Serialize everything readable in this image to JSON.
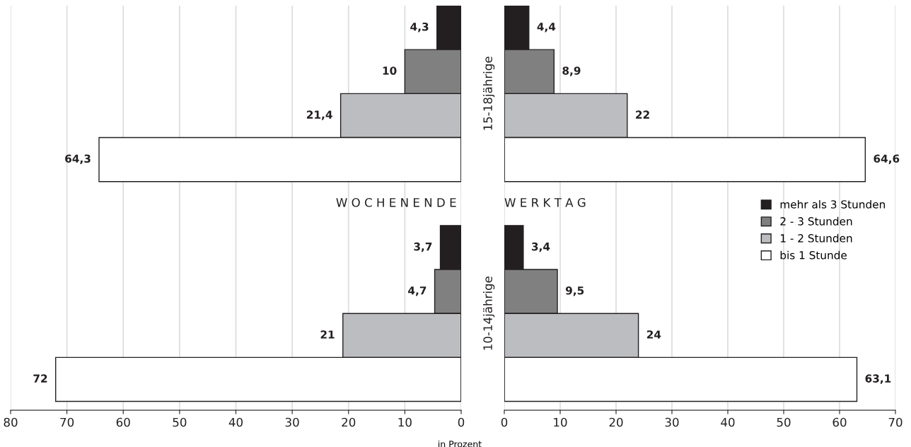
{
  "chart_data": [
    {
      "type": "bar",
      "orientation": "horizontal",
      "title": "W O C H E N E N D E",
      "categories": [
        null,
        null,
        null,
        null,
        null,
        null,
        null,
        null,
        null
      ],
      "series": [
        {
          "color": "#231f20",
          "values": [
            4.3,
            null,
            null,
            null,
            null,
            3.7,
            null,
            null,
            null
          ],
          "value_labels": [
            "4,3",
            null,
            null,
            null,
            null,
            "3,7",
            null,
            null,
            null
          ]
        },
        {
          "color": "#808080",
          "values": [
            null,
            10,
            null,
            null,
            null,
            null,
            4.7,
            null,
            null
          ],
          "value_labels": [
            null,
            "10",
            null,
            null,
            null,
            null,
            "4,7",
            null,
            null
          ]
        },
        {
          "color": "#bcbdc0",
          "values": [
            null,
            null,
            21.4,
            null,
            null,
            null,
            null,
            21,
            null
          ],
          "value_labels": [
            null,
            null,
            "21,4",
            null,
            null,
            null,
            null,
            "21",
            null
          ]
        },
        {
          "color": "#ffffff",
          "values": [
            null,
            null,
            null,
            64.3,
            null,
            null,
            null,
            null,
            72
          ],
          "value_labels": [
            null,
            null,
            null,
            "64,3",
            null,
            null,
            null,
            null,
            "72"
          ]
        }
      ],
      "xlim": [
        80,
        0
      ],
      "xticks": [
        80,
        70,
        60,
        50,
        40,
        30,
        20,
        10,
        0
      ],
      "grid": "x"
    },
    {
      "type": "bar",
      "orientation": "horizontal",
      "title": "W E R K T A G",
      "xlabel": "in Prozent",
      "annotations": [
        "15-18jährige",
        "10-14jährige"
      ],
      "categories": [
        null,
        null,
        null,
        null,
        null,
        null,
        null,
        null,
        null
      ],
      "series": [
        {
          "name": "mehr als 3 Stunden",
          "color": "#231f20",
          "values": [
            4.4,
            null,
            null,
            null,
            null,
            3.4,
            null,
            null,
            null
          ],
          "value_labels": [
            "4,4",
            null,
            null,
            null,
            null,
            "3,4",
            null,
            null,
            null
          ]
        },
        {
          "name": "2 - 3 Stunden",
          "color": "#808080",
          "values": [
            null,
            8.9,
            null,
            null,
            null,
            null,
            9.5,
            null,
            null
          ],
          "value_labels": [
            null,
            "8,9",
            null,
            null,
            null,
            null,
            "9,5",
            null,
            null
          ]
        },
        {
          "name": "1 - 2 Stunden",
          "color": "#bcbdc0",
          "values": [
            null,
            null,
            22,
            null,
            null,
            null,
            null,
            24,
            null
          ],
          "value_labels": [
            null,
            null,
            "22",
            null,
            null,
            null,
            null,
            "24",
            null
          ]
        },
        {
          "name": "bis 1 Stunde",
          "color": "#ffffff",
          "values": [
            null,
            null,
            null,
            64.6,
            null,
            null,
            null,
            null,
            63.1
          ],
          "value_labels": [
            null,
            null,
            null,
            "64,6",
            null,
            null,
            null,
            null,
            "63,1"
          ]
        }
      ],
      "xlim": [
        0,
        70
      ],
      "xticks": [
        0,
        10,
        20,
        30,
        40,
        50,
        60,
        70
      ],
      "grid": "x",
      "legend": "right"
    }
  ]
}
